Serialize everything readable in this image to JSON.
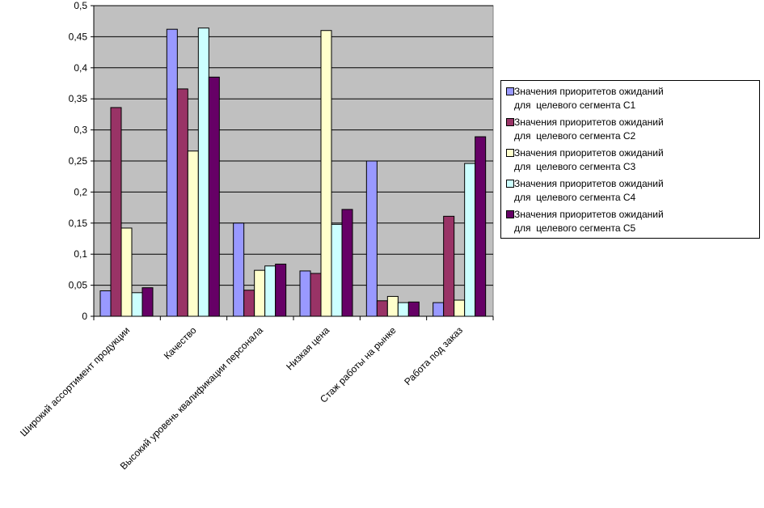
{
  "chart_data": {
    "type": "bar",
    "categories": [
      "Широкий ассортимент продукции",
      "Качество",
      "Высокий уровень квалификации персонала",
      "Низкая цена",
      "Стаж работы на рынке",
      "Работа под заказ"
    ],
    "series": [
      {
        "name": "Значения приоритетов ожиданий\nдля  целевого сегмента С1",
        "color": "#9999ff",
        "values": [
          0.041,
          0.462,
          0.15,
          0.073,
          0.25,
          0.022
        ]
      },
      {
        "name": "Значения приоритетов ожиданий\nдля  целевого сегмента С2",
        "color": "#993366",
        "values": [
          0.336,
          0.366,
          0.042,
          0.069,
          0.025,
          0.161
        ]
      },
      {
        "name": "Значения приоритетов ожиданий\nдля  целевого сегмента С3",
        "color": "#ffffcc",
        "values": [
          0.142,
          0.266,
          0.074,
          0.46,
          0.032,
          0.026
        ]
      },
      {
        "name": "Значения приоритетов ожиданий\nдля  целевого сегмента С4",
        "color": "#ccffff",
        "values": [
          0.038,
          0.464,
          0.081,
          0.148,
          0.022,
          0.246
        ]
      },
      {
        "name": "Значения приоритетов ожиданий\nдля  целевого сегмента С5",
        "color": "#660066",
        "values": [
          0.046,
          0.385,
          0.084,
          0.172,
          0.023,
          0.289
        ]
      }
    ],
    "y_ticks": [
      "0",
      "0,05",
      "0,1",
      "0,15",
      "0,2",
      "0,25",
      "0,3",
      "0,35",
      "0,4",
      "0,45",
      "0,5"
    ],
    "ylim": [
      0,
      0.5
    ],
    "grid": true,
    "plot_background": "#c0c0c0",
    "legend_position": "right",
    "title": "",
    "xlabel": "",
    "ylabel": ""
  }
}
